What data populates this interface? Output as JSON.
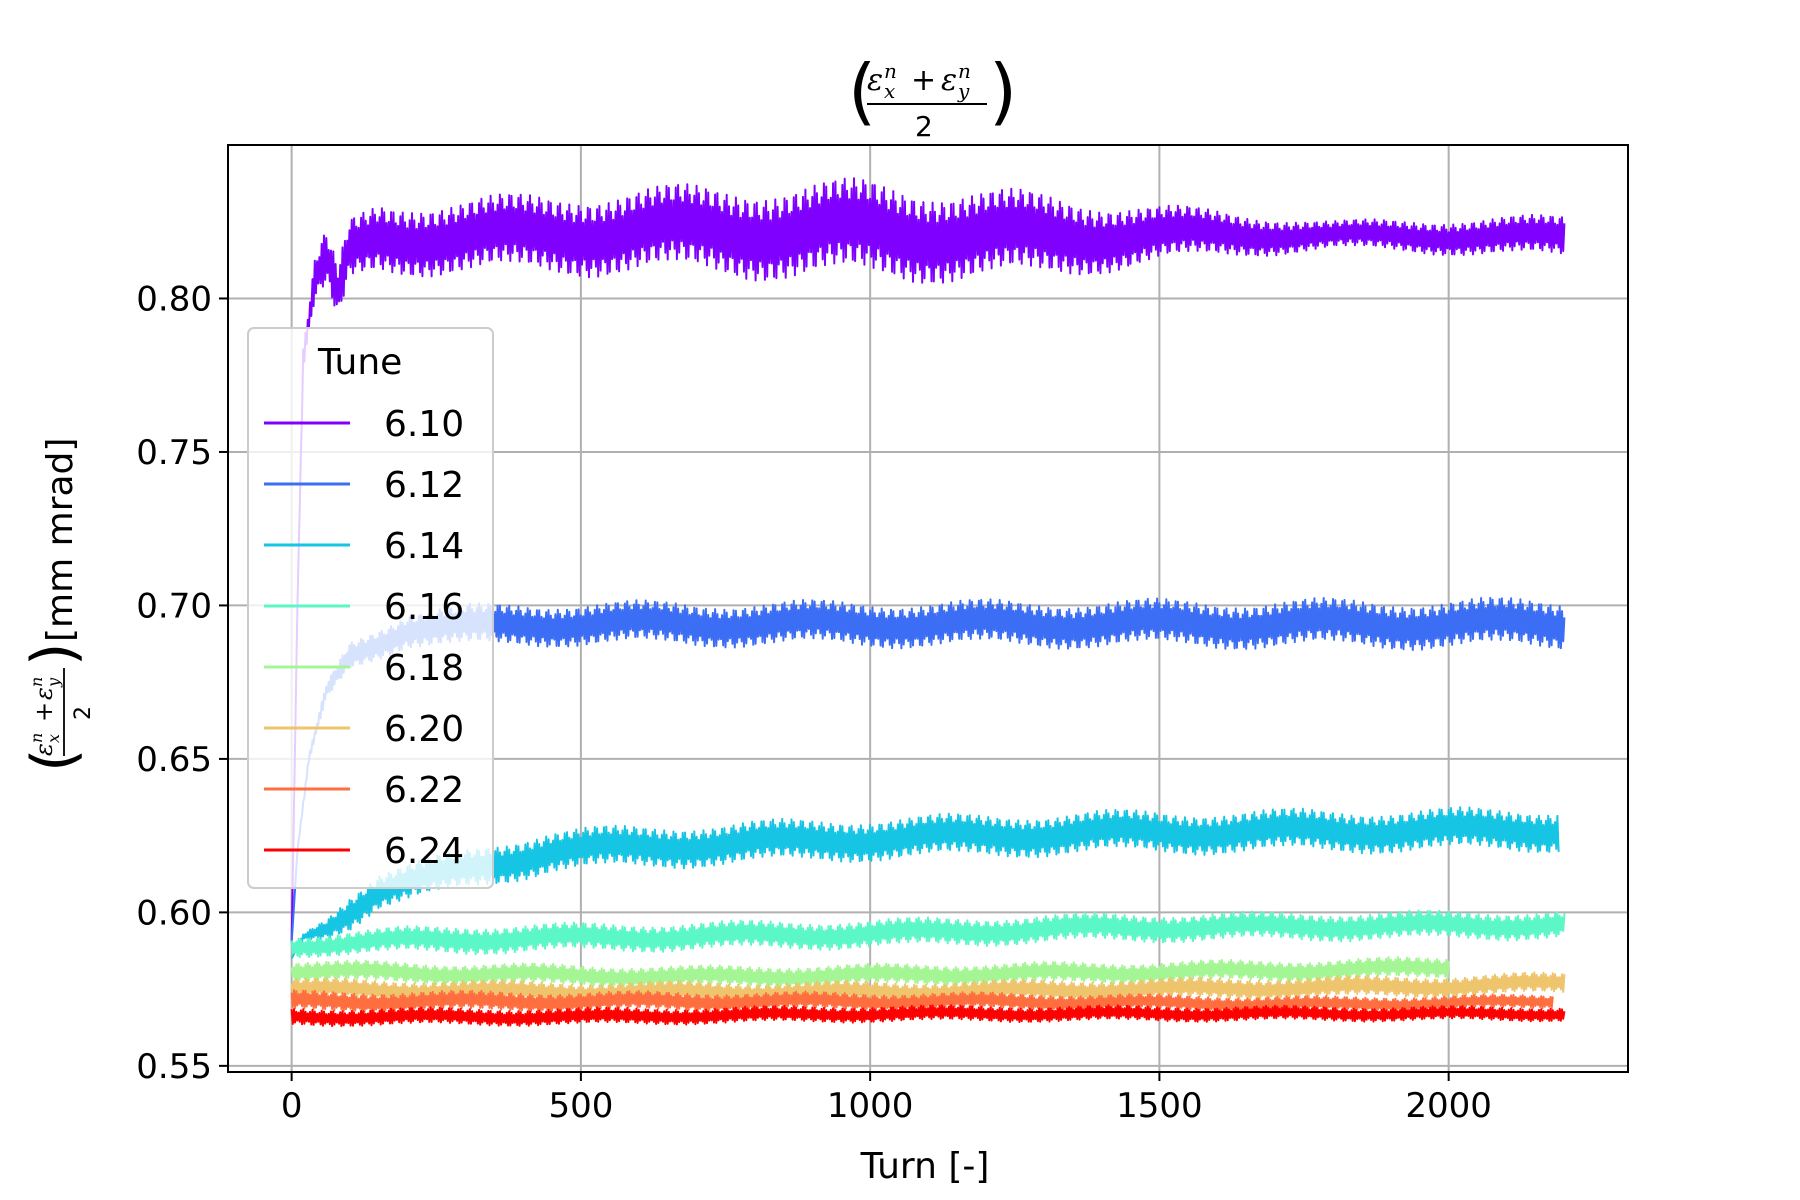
{
  "chart_data": {
    "type": "line",
    "title": "(εxn + εyn) / 2",
    "title_parts": {
      "eps": "ε",
      "sub_x": "x",
      "sub_y": "y",
      "sup": "n",
      "plus": "+",
      "den": "2"
    },
    "xlabel": "Turn [-]",
    "ylabel_unit": "[mm mrad]",
    "xlim": [
      -110,
      2310
    ],
    "ylim": [
      0.548,
      0.85
    ],
    "xticks": [
      0,
      500,
      1000,
      1500,
      2000
    ],
    "xtick_labels": [
      "0",
      "500",
      "1000",
      "1500",
      "2000"
    ],
    "yticks": [
      0.55,
      0.6,
      0.65,
      0.7,
      0.75,
      0.8
    ],
    "ytick_labels": [
      "0.55",
      "0.60",
      "0.65",
      "0.70",
      "0.75",
      "0.80"
    ],
    "grid": true,
    "legend": {
      "title": "Tune",
      "placement": "center-left"
    },
    "series": [
      {
        "name": "6.10",
        "color": "#8000ff",
        "x_end": 2200,
        "center": [
          [
            0,
            0.59
          ],
          [
            10,
            0.7
          ],
          [
            20,
            0.78
          ],
          [
            40,
            0.805
          ],
          [
            60,
            0.812
          ],
          [
            80,
            0.8
          ],
          [
            100,
            0.815
          ],
          [
            150,
            0.82
          ],
          [
            300,
            0.82
          ],
          [
            600,
            0.822
          ],
          [
            1000,
            0.822
          ],
          [
            1300,
            0.82
          ],
          [
            1500,
            0.821
          ],
          [
            2200,
            0.82
          ]
        ],
        "halfwidth": [
          [
            0,
            0.0
          ],
          [
            50,
            0.008
          ],
          [
            150,
            0.01
          ],
          [
            600,
            0.012
          ],
          [
            1000,
            0.014
          ],
          [
            1300,
            0.012
          ],
          [
            1500,
            0.008
          ],
          [
            1800,
            0.004
          ],
          [
            2200,
            0.006
          ]
        ]
      },
      {
        "name": "6.12",
        "color": "#3b6ef5",
        "x_end": 2200,
        "center": [
          [
            0,
            0.59
          ],
          [
            10,
            0.62
          ],
          [
            30,
            0.65
          ],
          [
            60,
            0.672
          ],
          [
            100,
            0.684
          ],
          [
            200,
            0.692
          ],
          [
            400,
            0.694
          ],
          [
            2200,
            0.694
          ]
        ],
        "halfwidth": [
          [
            0,
            0.0
          ],
          [
            100,
            0.004
          ],
          [
            300,
            0.006
          ],
          [
            2200,
            0.007
          ]
        ]
      },
      {
        "name": "6.14",
        "color": "#15c5e3",
        "x_end": 2190,
        "center": [
          [
            0,
            0.585
          ],
          [
            20,
            0.592
          ],
          [
            60,
            0.595
          ],
          [
            150,
            0.607
          ],
          [
            300,
            0.614
          ],
          [
            450,
            0.62
          ],
          [
            700,
            0.622
          ],
          [
            1000,
            0.624
          ],
          [
            1400,
            0.626
          ],
          [
            2190,
            0.627
          ]
        ],
        "halfwidth": [
          [
            0,
            0.0
          ],
          [
            100,
            0.005
          ],
          [
            400,
            0.006
          ],
          [
            2190,
            0.006
          ]
        ]
      },
      {
        "name": "6.16",
        "color": "#5cf7c6",
        "x_end": 2200,
        "center": [
          [
            0,
            0.589
          ],
          [
            200,
            0.591
          ],
          [
            600,
            0.592
          ],
          [
            1000,
            0.593
          ],
          [
            1400,
            0.595
          ],
          [
            2200,
            0.596
          ]
        ],
        "halfwidth": [
          [
            0,
            0.003
          ],
          [
            300,
            0.004
          ],
          [
            2200,
            0.004
          ]
        ]
      },
      {
        "name": "6.18",
        "color": "#a4f594",
        "x_end": 2000,
        "center": [
          [
            0,
            0.581
          ],
          [
            300,
            0.58
          ],
          [
            700,
            0.579
          ],
          [
            1200,
            0.58
          ],
          [
            1700,
            0.581
          ],
          [
            2000,
            0.582
          ]
        ],
        "halfwidth": [
          [
            0,
            0.003
          ],
          [
            2000,
            0.003
          ]
        ]
      },
      {
        "name": "6.20",
        "color": "#eec46d",
        "x_end": 2200,
        "center": [
          [
            0,
            0.575
          ],
          [
            500,
            0.574
          ],
          [
            1000,
            0.574
          ],
          [
            1500,
            0.575
          ],
          [
            2000,
            0.576
          ],
          [
            2200,
            0.577
          ]
        ],
        "halfwidth": [
          [
            0,
            0.003
          ],
          [
            2200,
            0.003
          ]
        ]
      },
      {
        "name": "6.22",
        "color": "#ff6e3f",
        "x_end": 2180,
        "center": [
          [
            0,
            0.571
          ],
          [
            600,
            0.571
          ],
          [
            1200,
            0.571
          ],
          [
            1800,
            0.57
          ],
          [
            2180,
            0.571
          ]
        ],
        "halfwidth": [
          [
            0,
            0.003
          ],
          [
            2180,
            0.002
          ]
        ]
      },
      {
        "name": "6.24",
        "color": "#ff0000",
        "x_end": 2200,
        "center": [
          [
            0,
            0.566
          ],
          [
            500,
            0.566
          ],
          [
            1000,
            0.567
          ],
          [
            1500,
            0.567
          ],
          [
            2200,
            0.567
          ]
        ],
        "halfwidth": [
          [
            0,
            0.0025
          ],
          [
            2200,
            0.002
          ]
        ]
      }
    ]
  }
}
